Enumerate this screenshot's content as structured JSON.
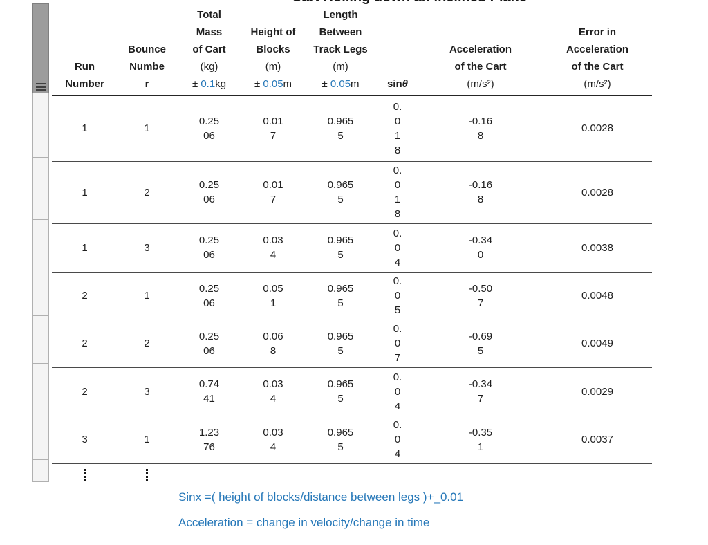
{
  "title": "Cart Rolling down an Inclined Plane",
  "accent_blue": "#2577b8",
  "table": {
    "columns": [
      {
        "id": "run",
        "label_lines": [
          "Run",
          "Number"
        ]
      },
      {
        "id": "bounce",
        "label_lines": [
          "Bounce",
          "Numbe",
          "r"
        ]
      },
      {
        "id": "mass",
        "label_lines": [
          "Total",
          "Mass",
          "of Cart"
        ],
        "unit": "(kg)",
        "tolerance": {
          "prefix": "±",
          "value": "0.1",
          "suffix": "kg"
        }
      },
      {
        "id": "height",
        "label_lines": [
          "Height of",
          "Blocks"
        ],
        "unit": "(m)",
        "tolerance": {
          "prefix": "±",
          "value": "0.05",
          "suffix": "m"
        }
      },
      {
        "id": "length",
        "label_lines": [
          "Length",
          "Between",
          "Track Legs"
        ],
        "unit": "(m)",
        "tolerance": {
          "prefix": "±",
          "value": "0.05",
          "suffix": "m"
        }
      },
      {
        "id": "sin",
        "sin_prefix": "sin",
        "sin_theta": "θ"
      },
      {
        "id": "accel",
        "label_lines": [
          "Acceleration",
          "of the Cart"
        ],
        "unit": "(m/s²)"
      },
      {
        "id": "error",
        "label_lines": [
          "Error in",
          "Acceleration",
          "of the Cart"
        ],
        "unit": "(m/s²)"
      }
    ],
    "rows": [
      {
        "run": [
          "1"
        ],
        "bounce": [
          "1"
        ],
        "mass": [
          "0.25",
          "06"
        ],
        "height": [
          "0.01",
          "7"
        ],
        "length": [
          "0.965",
          "5"
        ],
        "sin": [
          "0.",
          "0",
          "1",
          "8"
        ],
        "accel": [
          "-0.16",
          "8"
        ],
        "error": [
          "0.0028"
        ]
      },
      {
        "run": [
          "1"
        ],
        "bounce": [
          "2"
        ],
        "mass": [
          "0.25",
          "06"
        ],
        "height": [
          "0.01",
          "7"
        ],
        "length": [
          "0.965",
          "5"
        ],
        "sin": [
          "0.",
          "0",
          "1",
          "8"
        ],
        "accel": [
          "-0.16",
          "8"
        ],
        "error": [
          "0.0028"
        ]
      },
      {
        "run": [
          "1"
        ],
        "bounce": [
          "3"
        ],
        "mass": [
          "0.25",
          "06"
        ],
        "height": [
          "0.03",
          "4"
        ],
        "length": [
          "0.965",
          "5"
        ],
        "sin": [
          "0.",
          "0",
          "4"
        ],
        "accel": [
          "-0.34",
          "0"
        ],
        "error": [
          "0.0038"
        ]
      },
      {
        "run": [
          "2"
        ],
        "bounce": [
          "1"
        ],
        "mass": [
          "0.25",
          "06"
        ],
        "height": [
          "0.05",
          "1"
        ],
        "length": [
          "0.965",
          "5"
        ],
        "sin": [
          "0.",
          "0",
          "5"
        ],
        "accel": [
          "-0.50",
          "7"
        ],
        "error": [
          "0.0048"
        ]
      },
      {
        "run": [
          "2"
        ],
        "bounce": [
          "2"
        ],
        "mass": [
          "0.25",
          "06"
        ],
        "height": [
          "0.06",
          "8"
        ],
        "length": [
          "0.965",
          "5"
        ],
        "sin": [
          "0.",
          "0",
          "7"
        ],
        "accel": [
          "-0.69",
          "5"
        ],
        "error": [
          "0.0049"
        ]
      },
      {
        "run": [
          "2"
        ],
        "bounce": [
          "3"
        ],
        "mass": [
          "0.74",
          "41"
        ],
        "height": [
          "0.03",
          "4"
        ],
        "length": [
          "0.965",
          "5"
        ],
        "sin": [
          "0.",
          "0",
          "4"
        ],
        "accel": [
          "-0.34",
          "7"
        ],
        "error": [
          "0.0029"
        ]
      },
      {
        "run": [
          "3"
        ],
        "bounce": [
          "1"
        ],
        "mass": [
          "1.23",
          "76"
        ],
        "height": [
          "0.03",
          "4"
        ],
        "length": [
          "0.965",
          "5"
        ],
        "sin": [
          "0.",
          "0",
          "4"
        ],
        "accel": [
          "-0.35",
          "1"
        ],
        "error": [
          "0.0037"
        ]
      },
      {
        "type": "ellipsis"
      }
    ]
  },
  "notes": [
    "Sinx =( height of blocks/distance between legs )+_0.01",
    "Acceleration = change in velocity/change in time"
  ]
}
